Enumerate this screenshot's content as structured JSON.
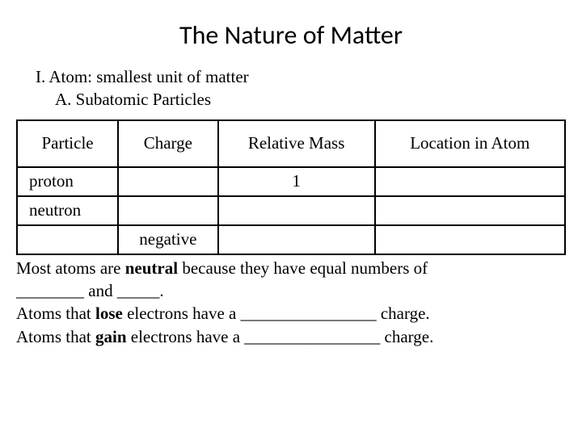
{
  "title": "The Nature of Matter",
  "outline": {
    "line1": "I. Atom: smallest unit of matter",
    "line2": "A. Subatomic Particles"
  },
  "table": {
    "columns": [
      "Particle",
      "Charge",
      "Relative Mass",
      "Location in Atom"
    ],
    "rows": [
      [
        "proton",
        "",
        "1",
        ""
      ],
      [
        "neutron",
        "",
        "",
        ""
      ],
      [
        "",
        "negative",
        "",
        ""
      ]
    ],
    "border_color": "#000000",
    "header_fontsize": 21,
    "cell_fontsize": 21
  },
  "paragraph": {
    "l1a": "Most atoms are ",
    "l1b": "neutral",
    "l1c": " because they have equal numbers of",
    "l2": "________ and _____.",
    "l3a": "Atoms that ",
    "l3b": "lose",
    "l3c": " electrons have a ________________ charge.",
    "l4a": "Atoms that ",
    "l4b": "gain",
    "l4c": " electrons have a ________________ charge."
  },
  "colors": {
    "background": "#ffffff",
    "text": "#000000"
  }
}
